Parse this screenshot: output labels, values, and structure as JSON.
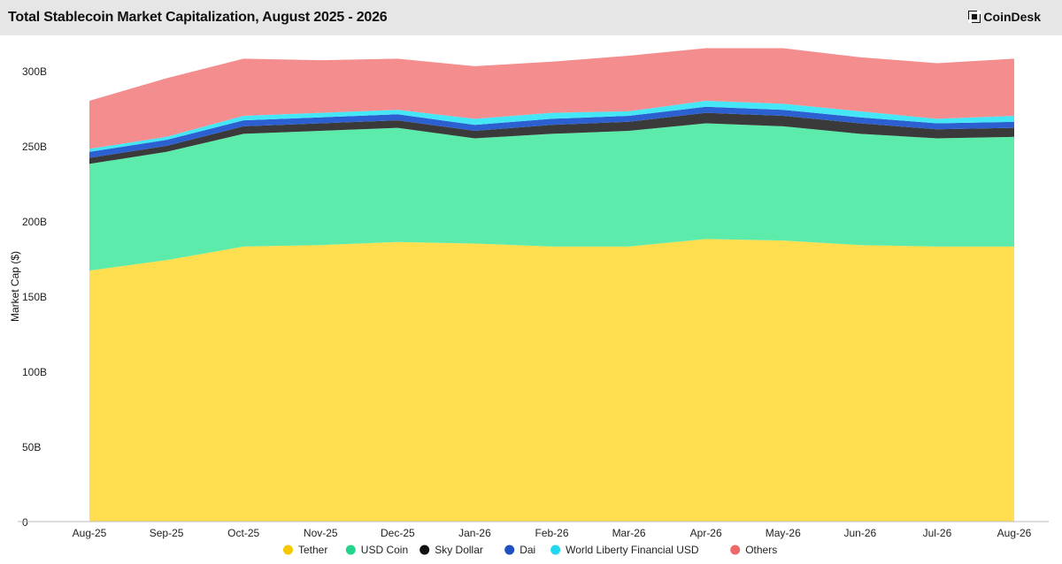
{
  "header": {
    "title": "Total Stablecoin Market Capitalization, August 2025 - 2026",
    "logo_text": "CoinDesk"
  },
  "chart_data": {
    "type": "area",
    "stacked": true,
    "title": "Total Stablecoin Market Capitalization, August 2025 - 2026",
    "xlabel": "",
    "ylabel": "Market Cap ($)",
    "ylim": [
      0,
      300
    ],
    "y_ticks": [
      0,
      50,
      100,
      150,
      200,
      250,
      300
    ],
    "y_tick_labels": [
      "0",
      "50B",
      "100B",
      "150B",
      "200B",
      "250B",
      "300B"
    ],
    "categories": [
      "Aug-25",
      "Sep-25",
      "Oct-25",
      "Nov-25",
      "Dec-25",
      "Jan-26",
      "Feb-26",
      "Mar-26",
      "Apr-26",
      "May-26",
      "Jun-26",
      "Jul-26",
      "Aug-26"
    ],
    "legend_position": "bottom",
    "grid": false,
    "series": [
      {
        "name": "Tether",
        "color": "#ffde4f",
        "values": [
          167,
          174,
          183,
          184,
          186,
          185,
          183,
          183,
          188,
          187,
          184,
          183,
          183
        ]
      },
      {
        "name": "USD Coin",
        "color": "#5debab",
        "values": [
          71,
          72,
          75,
          76,
          76,
          70,
          75,
          77,
          77,
          76,
          74,
          72,
          73
        ]
      },
      {
        "name": "Sky Dollar",
        "color": "#3a3a3a",
        "values": [
          4,
          4,
          5,
          5,
          5,
          5,
          6,
          6,
          7,
          7,
          7,
          6,
          6
        ]
      },
      {
        "name": "Dai",
        "color": "#2c5fd0",
        "values": [
          4,
          4,
          4,
          4,
          4,
          4,
          4,
          4,
          4,
          4,
          4,
          4,
          4
        ]
      },
      {
        "name": "World Liberty Financial USD",
        "color": "#45e6f5",
        "values": [
          2,
          2,
          3,
          3,
          3,
          4,
          4,
          3,
          4,
          4,
          4,
          3,
          4
        ]
      },
      {
        "name": "Others",
        "color": "#f48d8d",
        "values": [
          32,
          39,
          38,
          35,
          34,
          35,
          34,
          37,
          35,
          37,
          36,
          37,
          38
        ]
      }
    ]
  }
}
